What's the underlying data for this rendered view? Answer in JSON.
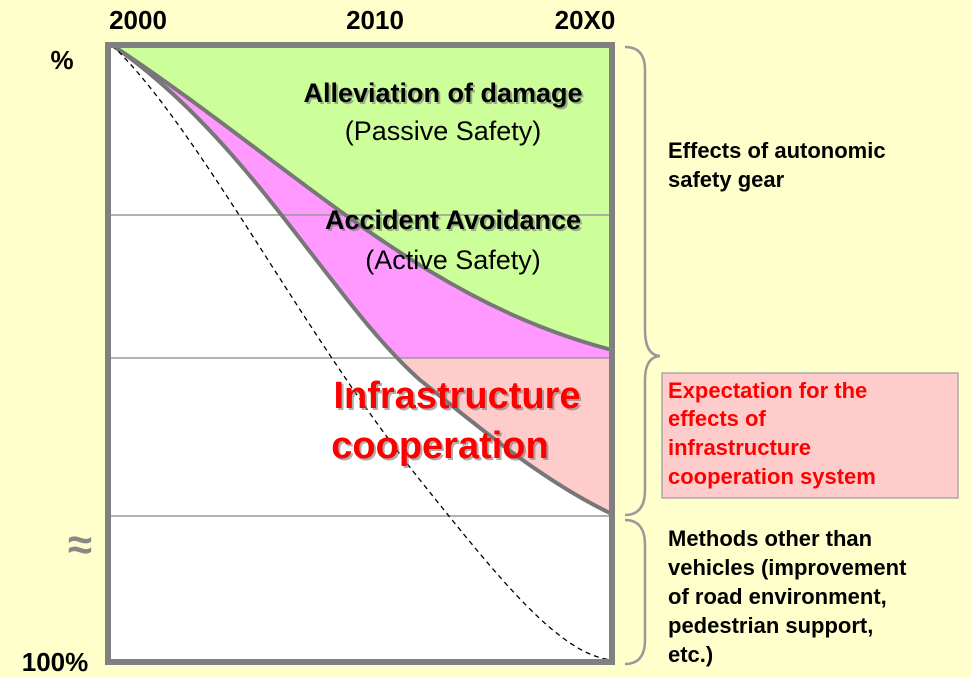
{
  "axis": {
    "top_labels": [
      "2000",
      "2010",
      "20X0"
    ],
    "top_label": "%",
    "bottom_label": "100%"
  },
  "regions": {
    "passive": [
      "Alleviation of damage",
      "(Passive Safety)"
    ],
    "active": [
      "Accident Avoidance",
      "(Active Safety)"
    ],
    "infrastructure": [
      "Infrastructure",
      "cooperation"
    ]
  },
  "brackets": [
    [
      "Effects of autonomic",
      "safety gear"
    ],
    [
      "Expectation for the",
      "effects of",
      "infrastructure",
      "cooperation system"
    ],
    [
      "Methods other than",
      "vehicles (improvement",
      "of road environment,",
      "pedestrian support,",
      "etc.)"
    ]
  ]
}
